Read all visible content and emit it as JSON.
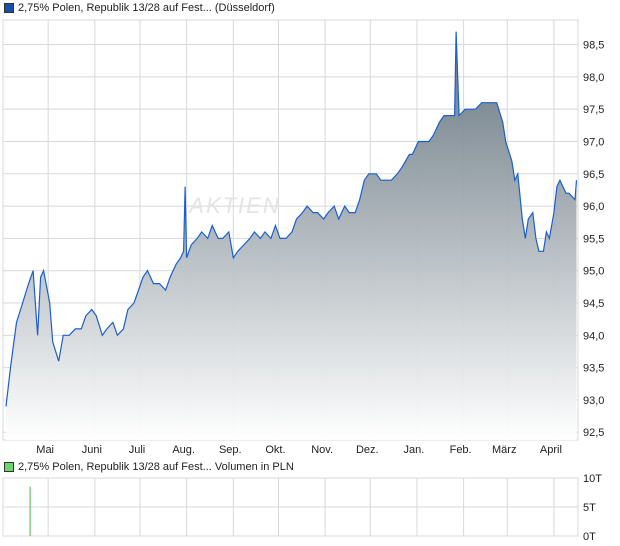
{
  "colors": {
    "line": "#1a5fd0",
    "fill_top": "#5e6e79",
    "fill_bottom": "#ffffff",
    "grid": "#d8d8d8",
    "price_swatch": "#1a4fa8",
    "volume_swatch": "#6cd66c",
    "volume_bar": "#5cc85c"
  },
  "watermark": "AKTIEN",
  "chart_data": [
    {
      "type": "area",
      "legend": "2,75% Polen, Republik 13/28 auf Fest... (Düsseldorf)",
      "xlim": [
        "2023-04-01",
        "2024-04-17"
      ],
      "ylim": [
        92.38,
        98.88
      ],
      "yticks": [
        92.5,
        93.0,
        93.5,
        94.0,
        94.5,
        95.0,
        95.5,
        96.0,
        96.5,
        97.0,
        97.5,
        98.0,
        98.5
      ],
      "ytick_labels": [
        "92,5",
        "93,0",
        "93,5",
        "94,0",
        "94,5",
        "95,0",
        "95,5",
        "96,0",
        "96,5",
        "97,0",
        "97,5",
        "98,0",
        "98,5"
      ],
      "xtick_labels": [
        "Mai",
        "Juni",
        "Juli",
        "Aug.",
        "Sep.",
        "Okt.",
        "Nov.",
        "Dez.",
        "Jan.",
        "Feb.",
        "März",
        "April"
      ],
      "xtick_dates": [
        "2023-05-01",
        "2023-06-01",
        "2023-07-01",
        "2023-08-01",
        "2023-09-01",
        "2023-10-01",
        "2023-11-01",
        "2023-12-01",
        "2024-01-01",
        "2024-02-01",
        "2024-03-01",
        "2024-04-01"
      ],
      "grid": true,
      "points": [
        [
          "2023-04-03",
          92.9
        ],
        [
          "2023-04-06",
          93.5
        ],
        [
          "2023-04-10",
          94.2
        ],
        [
          "2023-04-14",
          94.5
        ],
        [
          "2023-04-18",
          94.8
        ],
        [
          "2023-04-21",
          95.0
        ],
        [
          "2023-04-24",
          94.0
        ],
        [
          "2023-04-26",
          94.9
        ],
        [
          "2023-04-28",
          95.0
        ],
        [
          "2023-05-02",
          94.5
        ],
        [
          "2023-05-04",
          93.9
        ],
        [
          "2023-05-08",
          93.6
        ],
        [
          "2023-05-11",
          94.0
        ],
        [
          "2023-05-15",
          94.0
        ],
        [
          "2023-05-19",
          94.1
        ],
        [
          "2023-05-23",
          94.1
        ],
        [
          "2023-05-26",
          94.3
        ],
        [
          "2023-05-30",
          94.4
        ],
        [
          "2023-06-02",
          94.3
        ],
        [
          "2023-06-06",
          94.0
        ],
        [
          "2023-06-09",
          94.1
        ],
        [
          "2023-06-13",
          94.2
        ],
        [
          "2023-06-16",
          94.0
        ],
        [
          "2023-06-20",
          94.1
        ],
        [
          "2023-06-23",
          94.4
        ],
        [
          "2023-06-27",
          94.5
        ],
        [
          "2023-06-30",
          94.7
        ],
        [
          "2023-07-03",
          94.9
        ],
        [
          "2023-07-06",
          95.0
        ],
        [
          "2023-07-10",
          94.8
        ],
        [
          "2023-07-14",
          94.8
        ],
        [
          "2023-07-18",
          94.7
        ],
        [
          "2023-07-21",
          94.9
        ],
        [
          "2023-07-25",
          95.1
        ],
        [
          "2023-07-28",
          95.2
        ],
        [
          "2023-07-30",
          95.3
        ],
        [
          "2023-07-31",
          96.3
        ],
        [
          "2023-08-01",
          95.2
        ],
        [
          "2023-08-04",
          95.4
        ],
        [
          "2023-08-08",
          95.5
        ],
        [
          "2023-08-11",
          95.6
        ],
        [
          "2023-08-15",
          95.5
        ],
        [
          "2023-08-18",
          95.7
        ],
        [
          "2023-08-22",
          95.5
        ],
        [
          "2023-08-25",
          95.5
        ],
        [
          "2023-08-29",
          95.6
        ],
        [
          "2023-09-01",
          95.2
        ],
        [
          "2023-09-04",
          95.3
        ],
        [
          "2023-09-08",
          95.4
        ],
        [
          "2023-09-12",
          95.5
        ],
        [
          "2023-09-15",
          95.6
        ],
        [
          "2023-09-19",
          95.5
        ],
        [
          "2023-09-22",
          95.6
        ],
        [
          "2023-09-26",
          95.5
        ],
        [
          "2023-09-29",
          95.7
        ],
        [
          "2023-10-02",
          95.5
        ],
        [
          "2023-10-06",
          95.5
        ],
        [
          "2023-10-10",
          95.6
        ],
        [
          "2023-10-13",
          95.8
        ],
        [
          "2023-10-17",
          95.9
        ],
        [
          "2023-10-20",
          96.0
        ],
        [
          "2023-10-24",
          95.9
        ],
        [
          "2023-10-27",
          95.9
        ],
        [
          "2023-10-31",
          95.8
        ],
        [
          "2023-11-03",
          95.9
        ],
        [
          "2023-11-07",
          96.0
        ],
        [
          "2023-11-10",
          95.8
        ],
        [
          "2023-11-14",
          96.0
        ],
        [
          "2023-11-17",
          95.9
        ],
        [
          "2023-11-21",
          95.9
        ],
        [
          "2023-11-24",
          96.1
        ],
        [
          "2023-11-27",
          96.4
        ],
        [
          "2023-11-30",
          96.5
        ],
        [
          "2023-12-05",
          96.5
        ],
        [
          "2023-12-08",
          96.4
        ],
        [
          "2023-12-12",
          96.4
        ],
        [
          "2023-12-15",
          96.4
        ],
        [
          "2023-12-19",
          96.5
        ],
        [
          "2023-12-22",
          96.6
        ],
        [
          "2023-12-27",
          96.8
        ],
        [
          "2023-12-29",
          96.8
        ],
        [
          "2024-01-02",
          97.0
        ],
        [
          "2024-01-05",
          97.0
        ],
        [
          "2024-01-09",
          97.0
        ],
        [
          "2024-01-12",
          97.1
        ],
        [
          "2024-01-16",
          97.3
        ],
        [
          "2024-01-19",
          97.4
        ],
        [
          "2024-01-23",
          97.4
        ],
        [
          "2024-01-26",
          97.4
        ],
        [
          "2024-01-27",
          98.7
        ],
        [
          "2024-01-29",
          97.4
        ],
        [
          "2024-02-02",
          97.5
        ],
        [
          "2024-02-06",
          97.5
        ],
        [
          "2024-02-09",
          97.5
        ],
        [
          "2024-02-13",
          97.6
        ],
        [
          "2024-02-16",
          97.6
        ],
        [
          "2024-02-20",
          97.6
        ],
        [
          "2024-02-23",
          97.6
        ],
        [
          "2024-02-27",
          97.3
        ],
        [
          "2024-02-29",
          97.0
        ],
        [
          "2024-03-04",
          96.7
        ],
        [
          "2024-03-06",
          96.4
        ],
        [
          "2024-03-08",
          96.5
        ],
        [
          "2024-03-11",
          95.8
        ],
        [
          "2024-03-13",
          95.5
        ],
        [
          "2024-03-15",
          95.8
        ],
        [
          "2024-03-18",
          95.9
        ],
        [
          "2024-03-20",
          95.5
        ],
        [
          "2024-03-22",
          95.3
        ],
        [
          "2024-03-25",
          95.3
        ],
        [
          "2024-03-27",
          95.6
        ],
        [
          "2024-03-29",
          95.5
        ],
        [
          "2024-04-01",
          95.9
        ],
        [
          "2024-04-03",
          96.3
        ],
        [
          "2024-04-05",
          96.4
        ],
        [
          "2024-04-09",
          96.2
        ],
        [
          "2024-04-11",
          96.2
        ],
        [
          "2024-04-15",
          96.1
        ],
        [
          "2024-04-16",
          96.4
        ]
      ]
    },
    {
      "type": "bar",
      "legend": "2,75% Polen, Republik 13/28 auf Fest... Volumen in PLN",
      "ylim": [
        0,
        10
      ],
      "ytick_labels": [
        "10T",
        "5T",
        "0T"
      ],
      "yticks": [
        10,
        5,
        0
      ],
      "bars": [
        [
          "2023-04-19",
          8.5
        ]
      ]
    }
  ]
}
